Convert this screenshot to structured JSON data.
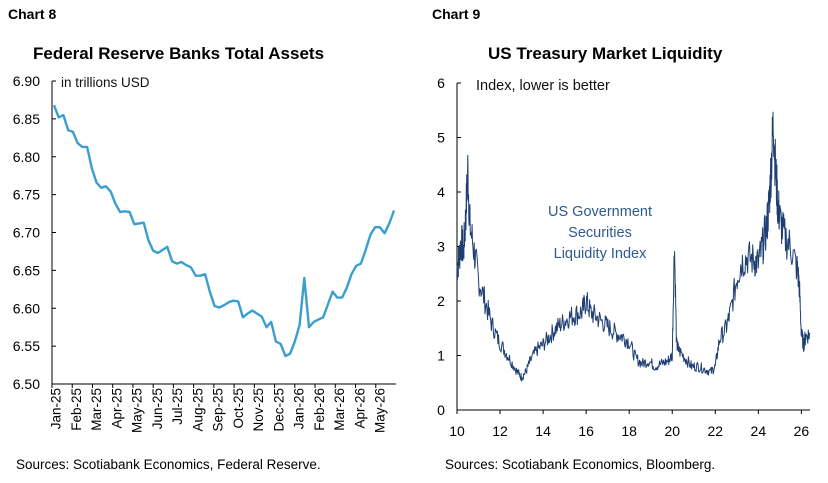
{
  "chart_data": [
    {
      "type": "line",
      "label": "Chart 8",
      "title": "Federal Reserve Banks Total Assets",
      "annotation": "in trillions USD",
      "source": "Sources: Scotiabank Economics, Federal Reserve.",
      "color": "#3a9fd0",
      "ylim": [
        6.5,
        6.9
      ],
      "yticks": [
        "6.90",
        "6.85",
        "6.80",
        "6.75",
        "6.70",
        "6.65",
        "6.60",
        "6.55",
        "6.50"
      ],
      "xticks": [
        "Jan-25",
        "Feb-25",
        "Mar-25",
        "Apr-25",
        "May-25",
        "Jun-25",
        "Jul-25",
        "Aug-25",
        "Sep-25",
        "Oct-25",
        "Nov-25",
        "Dec-25",
        "Jan-26",
        "Feb-26",
        "Mar-26",
        "Apr-26",
        "May-26"
      ],
      "grid": false,
      "series": [
        {
          "values": [
            6.868,
            6.852,
            6.855,
            6.835,
            6.833,
            6.818,
            6.813,
            6.813,
            6.785,
            6.766,
            6.759,
            6.761,
            6.754,
            6.738,
            6.727,
            6.728,
            6.727,
            6.711,
            6.712,
            6.713,
            6.69,
            6.676,
            6.673,
            6.677,
            6.681,
            6.662,
            6.659,
            6.661,
            6.657,
            6.654,
            6.643,
            6.643,
            6.645,
            6.622,
            6.603,
            6.601,
            6.604,
            6.608,
            6.61,
            6.609,
            6.588,
            6.593,
            6.597,
            6.593,
            6.589,
            6.575,
            6.582,
            6.556,
            6.553,
            6.537,
            6.54,
            6.556,
            6.578,
            6.64,
            6.575,
            6.582,
            6.585,
            6.588,
            6.605,
            6.622,
            6.614,
            6.614,
            6.627,
            6.645,
            6.656,
            6.659,
            6.677,
            6.697,
            6.707,
            6.707,
            6.699,
            6.712,
            6.729
          ]
        }
      ]
    },
    {
      "type": "line",
      "label": "Chart 9",
      "title": "US Treasury Market Liquidity",
      "annotation": "Index, lower is better",
      "series_label": [
        "US Government",
        "Securities",
        "Liquidity Index"
      ],
      "source": "Sources: Scotiabank Economics, Bloomberg.",
      "color": "#1f3f73",
      "ylim": [
        0,
        6
      ],
      "yticks": [
        "6",
        "5",
        "4",
        "3",
        "2",
        "1",
        "0"
      ],
      "xlim": [
        10,
        26.4
      ],
      "xticks": [
        "10",
        "12",
        "14",
        "16",
        "18",
        "20",
        "22",
        "24",
        "26"
      ],
      "grid": false,
      "series": [
        {
          "x": [
            10.0,
            10.1,
            10.2,
            10.3,
            10.4,
            10.5,
            10.6,
            10.8,
            11.0,
            11.3,
            11.6,
            11.9,
            12.2,
            12.5,
            12.8,
            13.0,
            13.2,
            13.4,
            13.7,
            14.0,
            14.3,
            14.6,
            14.9,
            15.2,
            15.5,
            15.8,
            16.0,
            16.2,
            16.5,
            16.8,
            17.1,
            17.4,
            17.7,
            18.0,
            18.3,
            18.6,
            18.9,
            19.2,
            19.5,
            19.8,
            20.0,
            20.1,
            20.2,
            20.3,
            20.6,
            20.9,
            21.2,
            21.5,
            21.8,
            22.0,
            22.2,
            22.5,
            22.7,
            23.0,
            23.2,
            23.5,
            23.8,
            24.0,
            24.2,
            24.4,
            24.5,
            24.6,
            24.7,
            24.8,
            24.9,
            25.0,
            25.2,
            25.5,
            25.8,
            25.9,
            26.0,
            26.1,
            26.2,
            26.4
          ],
          "y": [
            2.6,
            2.8,
            3.1,
            2.9,
            3.5,
            4.4,
            3.4,
            2.9,
            2.4,
            2.0,
            1.6,
            1.3,
            1.1,
            0.9,
            0.7,
            0.6,
            0.7,
            0.9,
            1.1,
            1.2,
            1.35,
            1.5,
            1.6,
            1.7,
            1.75,
            1.8,
            2.0,
            1.8,
            1.7,
            1.6,
            1.5,
            1.4,
            1.35,
            1.25,
            0.95,
            0.85,
            0.9,
            0.8,
            0.85,
            0.9,
            1.0,
            3.1,
            1.2,
            1.1,
            0.95,
            0.8,
            0.8,
            0.75,
            0.7,
            0.8,
            1.3,
            1.5,
            1.8,
            2.4,
            2.7,
            2.8,
            2.75,
            2.7,
            3.0,
            3.4,
            3.8,
            4.5,
            5.3,
            4.4,
            3.8,
            3.5,
            3.2,
            3.0,
            2.6,
            2.3,
            1.4,
            1.2,
            1.35,
            1.4
          ]
        }
      ]
    }
  ]
}
